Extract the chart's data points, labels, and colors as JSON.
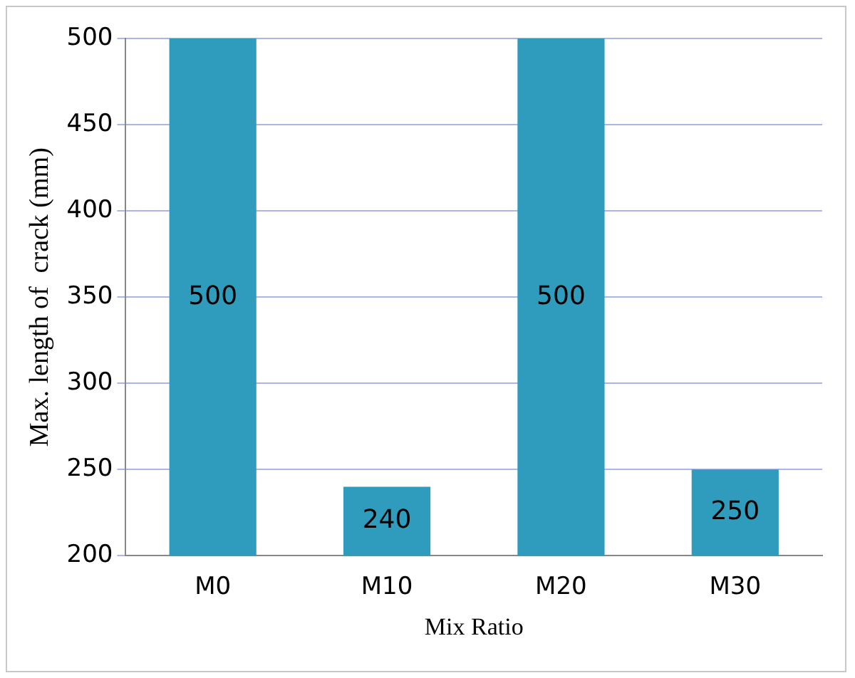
{
  "chart_data": {
    "type": "bar",
    "xlabel": "Mix Ratio",
    "ylabel": "Max. length of  crack (mm)",
    "categories": [
      "M0",
      "M10",
      "M20",
      "M30"
    ],
    "values": [
      500,
      240,
      500,
      250
    ],
    "color": "#2f9cbd",
    "ylim": [
      200,
      500
    ],
    "yticks": [
      200,
      250,
      300,
      350,
      400,
      450,
      500
    ],
    "grid": "y",
    "data_labels": true
  }
}
